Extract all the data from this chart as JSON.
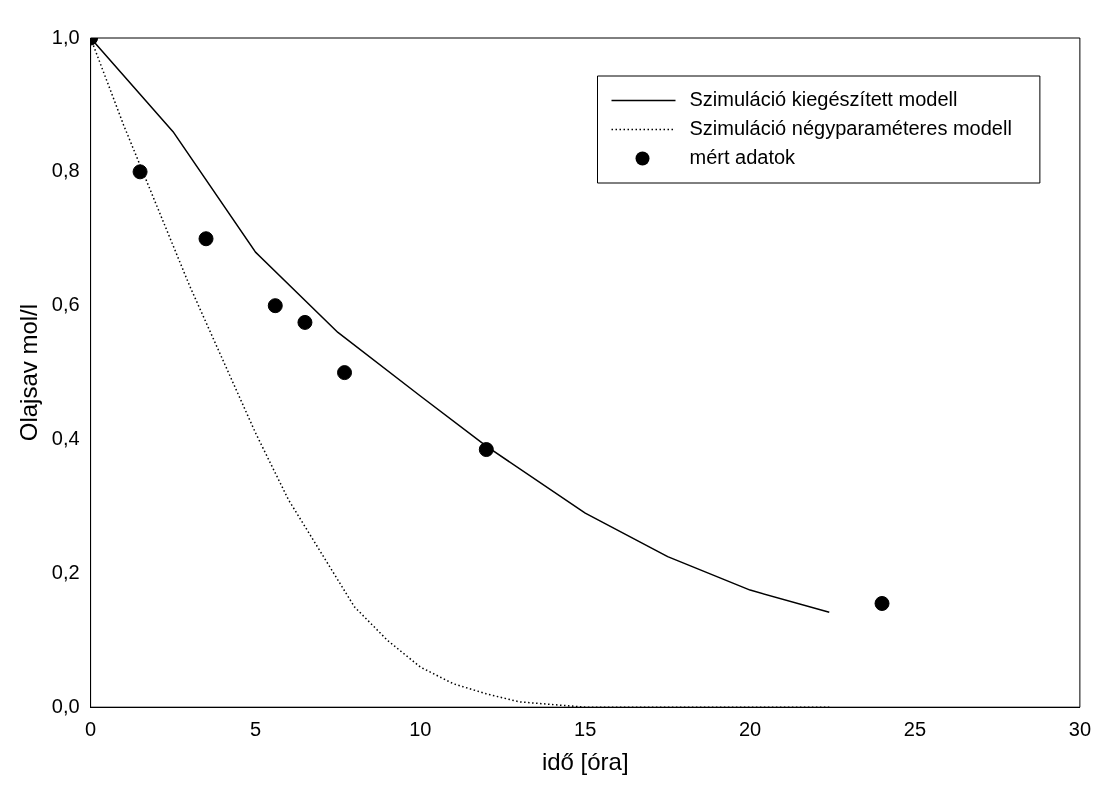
{
  "chart_data": {
    "type": "line",
    "xlabel": "idő [óra]",
    "ylabel": "Olajsav mol/l",
    "xlim": [
      0,
      30
    ],
    "xticks": [
      0,
      5,
      10,
      15,
      20,
      25,
      30
    ],
    "ylim": [
      0,
      1
    ],
    "yticks": [
      {
        "value": 0,
        "label": "0,0"
      },
      {
        "value": 0.2,
        "label": "0,2"
      },
      {
        "value": 0.4,
        "label": "0,4"
      },
      {
        "value": 0.6,
        "label": "0,6"
      },
      {
        "value": 0.8,
        "label": "0,8"
      },
      {
        "value": 1,
        "label": "1,0"
      }
    ],
    "grid": false,
    "legend": "top right",
    "series": [
      {
        "name": "Szimuláció kiegészített modell",
        "type": "line",
        "line_style": "solid",
        "marker": "none",
        "color": "#000000",
        "x": [
          0,
          2.5,
          5,
          7.5,
          10,
          12,
          15,
          17.5,
          20,
          22.4
        ],
        "values": [
          1.0,
          0.86,
          0.68,
          0.56,
          0.465,
          0.39,
          0.29,
          0.225,
          0.175,
          0.142
        ]
      },
      {
        "name": "Szimuláció négyparaméteres modell",
        "type": "line",
        "line_style": "dotted",
        "marker": "none",
        "color": "#000000",
        "x": [
          0,
          1,
          2,
          3,
          4,
          5,
          6,
          7,
          8,
          9,
          10,
          11,
          12,
          13,
          15,
          22.4
        ],
        "values": [
          1.0,
          0.87,
          0.75,
          0.63,
          0.52,
          0.41,
          0.31,
          0.23,
          0.15,
          0.1,
          0.06,
          0.035,
          0.02,
          0.008,
          0,
          0
        ]
      },
      {
        "name": "mért adatok",
        "type": "scatter",
        "marker": "circle",
        "color": "#000000",
        "x": [
          0,
          1.5,
          3.5,
          5.6,
          6.5,
          7.7,
          12,
          24
        ],
        "values": [
          1.0,
          0.8,
          0.7,
          0.6,
          0.575,
          0.5,
          0.385,
          0.155
        ]
      }
    ]
  }
}
